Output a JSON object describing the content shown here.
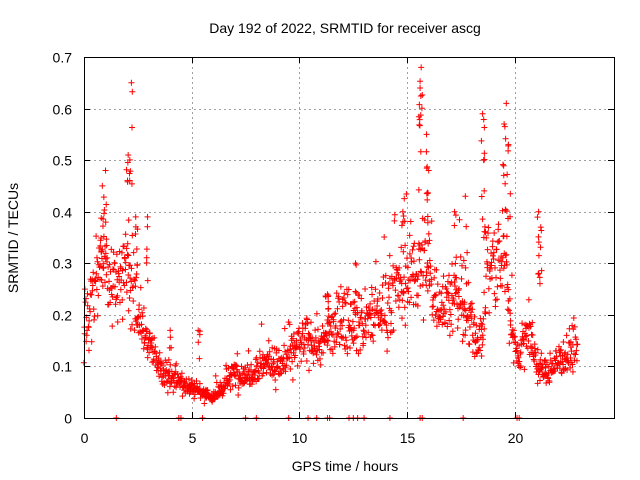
{
  "chart_data": {
    "type": "scatter",
    "title": "Day 192 of 2022, SRMTID for receiver ascg",
    "xlabel": "GPS time / hours",
    "ylabel": "SRMTID / TECUs",
    "xlim": [
      0,
      24.6
    ],
    "ylim": [
      0,
      0.7
    ],
    "x_ticks": [
      0,
      5,
      10,
      15,
      20
    ],
    "x_tick_labels": [
      "0",
      "5",
      "10",
      "15",
      "20"
    ],
    "y_ticks": [
      0,
      0.1,
      0.2,
      0.3,
      0.4,
      0.5,
      0.6,
      0.7
    ],
    "y_tick_labels": [
      "0",
      "0.1",
      "0.2",
      "0.3",
      "0.4",
      "0.5",
      "0.6",
      "0.7"
    ],
    "grid": true,
    "marker": "plus",
    "color": "#ff0000",
    "series": [
      {
        "name": "SRMTID",
        "trend": [
          [
            0.0,
            0.18
          ],
          [
            0.3,
            0.22
          ],
          [
            0.6,
            0.28
          ],
          [
            0.9,
            0.32
          ],
          [
            1.2,
            0.28
          ],
          [
            1.6,
            0.25
          ],
          [
            2.0,
            0.3
          ],
          [
            2.3,
            0.24
          ],
          [
            2.6,
            0.18
          ],
          [
            2.9,
            0.16
          ],
          [
            3.2,
            0.13
          ],
          [
            3.5,
            0.09
          ],
          [
            4.0,
            0.08
          ],
          [
            4.5,
            0.07
          ],
          [
            5.0,
            0.06
          ],
          [
            5.5,
            0.05
          ],
          [
            6.0,
            0.04
          ],
          [
            6.5,
            0.06
          ],
          [
            7.0,
            0.09
          ],
          [
            7.5,
            0.08
          ],
          [
            8.0,
            0.1
          ],
          [
            8.5,
            0.11
          ],
          [
            9.0,
            0.1
          ],
          [
            9.5,
            0.12
          ],
          [
            10.0,
            0.14
          ],
          [
            10.5,
            0.15
          ],
          [
            11.0,
            0.14
          ],
          [
            11.5,
            0.17
          ],
          [
            12.0,
            0.19
          ],
          [
            12.5,
            0.2
          ],
          [
            13.0,
            0.18
          ],
          [
            13.5,
            0.2
          ],
          [
            14.0,
            0.22
          ],
          [
            14.5,
            0.25
          ],
          [
            15.0,
            0.27
          ],
          [
            15.4,
            0.29
          ],
          [
            15.8,
            0.3
          ],
          [
            16.2,
            0.25
          ],
          [
            16.7,
            0.22
          ],
          [
            17.2,
            0.24
          ],
          [
            17.7,
            0.2
          ],
          [
            18.2,
            0.16
          ],
          [
            18.5,
            0.15
          ],
          [
            18.7,
            0.3
          ],
          [
            19.2,
            0.3
          ],
          [
            19.6,
            0.3
          ],
          [
            19.9,
            0.15
          ],
          [
            20.2,
            0.12
          ],
          [
            20.6,
            0.18
          ],
          [
            21.0,
            0.1
          ],
          [
            21.4,
            0.09
          ],
          [
            21.8,
            0.1
          ],
          [
            22.2,
            0.12
          ],
          [
            22.6,
            0.13
          ],
          [
            22.9,
            0.14
          ]
        ],
        "peaks": [
          [
            0.85,
            0.45
          ],
          [
            1.0,
            0.48
          ],
          [
            2.2,
            0.65
          ],
          [
            2.05,
            0.51
          ],
          [
            2.4,
            0.39
          ],
          [
            2.95,
            0.39
          ],
          [
            15.65,
            0.68
          ],
          [
            15.6,
            0.64
          ],
          [
            15.9,
            0.55
          ],
          [
            16.0,
            0.48
          ],
          [
            18.5,
            0.59
          ],
          [
            18.55,
            0.5
          ],
          [
            19.6,
            0.61
          ],
          [
            19.5,
            0.57
          ],
          [
            19.7,
            0.53
          ],
          [
            17.7,
            0.43
          ],
          [
            17.2,
            0.4
          ],
          [
            14.8,
            0.4
          ],
          [
            21.1,
            0.4
          ],
          [
            21.2,
            0.37
          ],
          [
            4.0,
            0.17
          ],
          [
            5.3,
            0.17
          ],
          [
            12.6,
            0.3
          ],
          [
            11.3,
            0.24
          ]
        ],
        "zeros": [
          1.5,
          4.4,
          4.5,
          5.5,
          7.5,
          8.0,
          9.5,
          10.4,
          10.8,
          11.3,
          11.4,
          12.3,
          12.5,
          12.7,
          13.0,
          14.2,
          15.6,
          15.7,
          17.6,
          20.1,
          20.2
        ]
      }
    ]
  }
}
